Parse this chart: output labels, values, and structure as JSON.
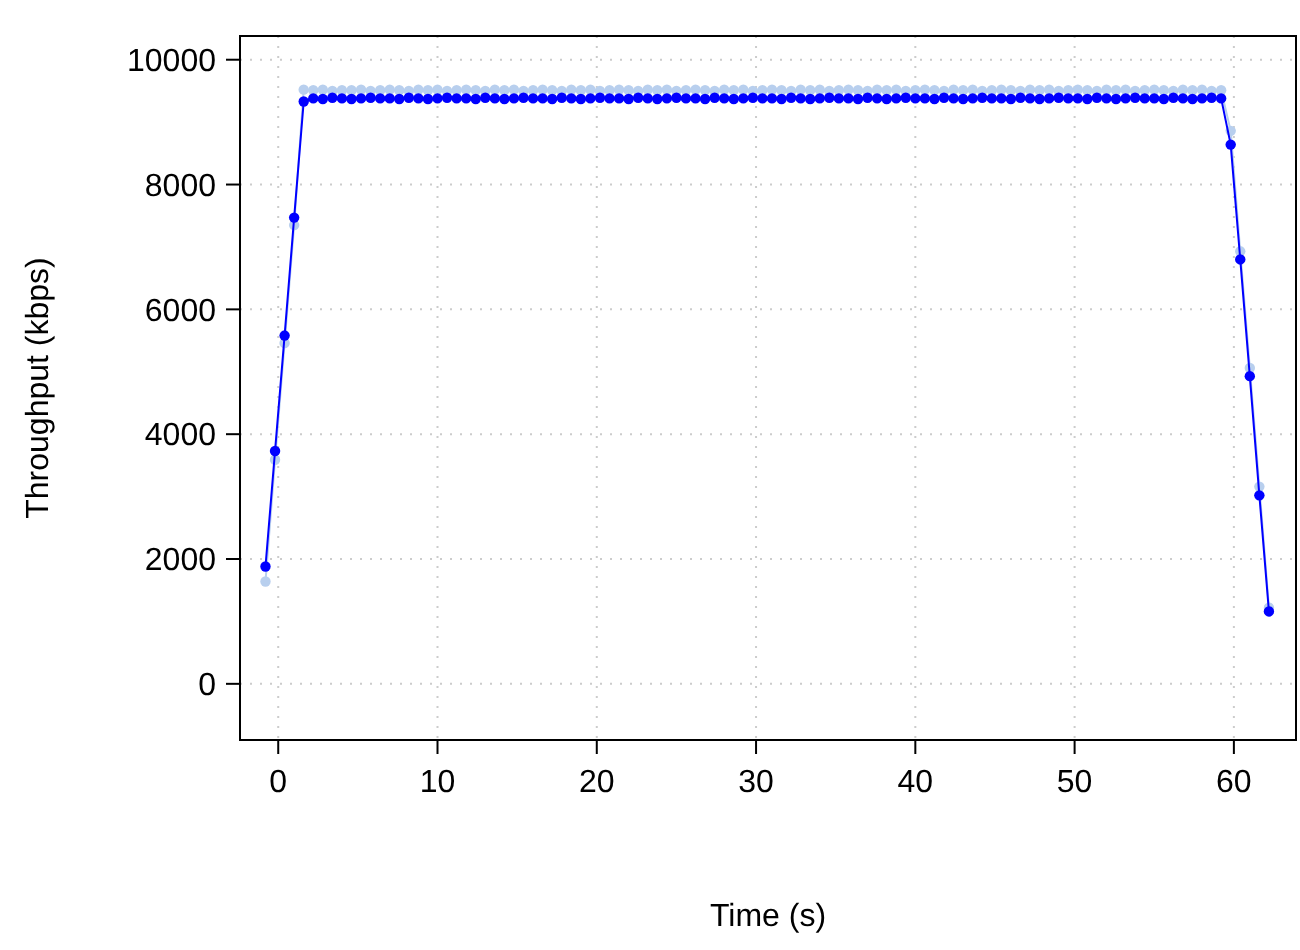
{
  "chart_data": {
    "type": "line",
    "xlabel": "Time (s)",
    "ylabel": "Throughput (kbps)",
    "xlim": [
      -2.4,
      63.9
    ],
    "ylim": [
      -900,
      10380
    ],
    "xticks": [
      0,
      10,
      20,
      30,
      40,
      50,
      60
    ],
    "yticks": [
      0,
      2000,
      4000,
      6000,
      8000,
      10000
    ],
    "grid": true,
    "marker": "circle",
    "line_style": "solid",
    "x": [
      -0.8,
      -0.2,
      0.4,
      1.0,
      1.6,
      2.2,
      2.8,
      3.4,
      4.0,
      4.6,
      5.2,
      5.8,
      6.4,
      7.0,
      7.6,
      8.2,
      8.8,
      9.4,
      10.0,
      10.6,
      11.2,
      11.8,
      12.4,
      13.0,
      13.6,
      14.2,
      14.8,
      15.4,
      16.0,
      16.6,
      17.2,
      17.8,
      18.4,
      19.0,
      19.6,
      20.2,
      20.8,
      21.4,
      22.0,
      22.6,
      23.2,
      23.8,
      24.4,
      25.0,
      25.6,
      26.2,
      26.8,
      27.4,
      28.0,
      28.6,
      29.2,
      29.8,
      30.4,
      31.0,
      31.6,
      32.2,
      32.8,
      33.4,
      34.0,
      34.6,
      35.2,
      35.8,
      36.4,
      37.0,
      37.6,
      38.2,
      38.8,
      39.4,
      40.0,
      40.6,
      41.2,
      41.8,
      42.4,
      43.0,
      43.6,
      44.2,
      44.8,
      45.4,
      46.0,
      46.6,
      47.2,
      47.8,
      48.4,
      49.0,
      49.6,
      50.2,
      50.8,
      51.4,
      52.0,
      52.6,
      53.2,
      53.8,
      54.4,
      55.0,
      55.6,
      56.2,
      56.8,
      57.4,
      58.0,
      58.6,
      59.2,
      59.8,
      60.4,
      61.0,
      61.6,
      62.2
    ],
    "series": [
      {
        "color": "#0000ff",
        "values": [
          1880,
          3730,
          5580,
          7470,
          9330,
          9380,
          9370,
          9390,
          9380,
          9370,
          9380,
          9390,
          9380,
          9380,
          9370,
          9390,
          9380,
          9370,
          9380,
          9390,
          9380,
          9380,
          9370,
          9390,
          9380,
          9370,
          9380,
          9390,
          9380,
          9380,
          9370,
          9390,
          9380,
          9370,
          9380,
          9390,
          9380,
          9380,
          9370,
          9390,
          9380,
          9370,
          9380,
          9390,
          9380,
          9380,
          9370,
          9390,
          9380,
          9370,
          9380,
          9390,
          9380,
          9380,
          9370,
          9390,
          9380,
          9370,
          9380,
          9390,
          9380,
          9380,
          9370,
          9390,
          9380,
          9370,
          9380,
          9390,
          9380,
          9380,
          9370,
          9390,
          9380,
          9370,
          9380,
          9390,
          9380,
          9380,
          9370,
          9390,
          9380,
          9370,
          9380,
          9390,
          9380,
          9380,
          9370,
          9390,
          9380,
          9370,
          9380,
          9390,
          9380,
          9380,
          9370,
          9390,
          9380,
          9370,
          9380,
          9390,
          9380,
          8640,
          6800,
          4930,
          3020,
          1160
        ]
      },
      {
        "color": "#b8cfee",
        "values": [
          1640,
          3590,
          5460,
          7350,
          9520,
          9510,
          9520,
          9500,
          9510,
          9510,
          9520,
          9500,
          9510,
          9520,
          9510,
          9500,
          9520,
          9510,
          9520,
          9500,
          9510,
          9520,
          9510,
          9500,
          9520,
          9510,
          9520,
          9500,
          9510,
          9520,
          9510,
          9500,
          9520,
          9510,
          9520,
          9500,
          9510,
          9520,
          9510,
          9500,
          9520,
          9510,
          9520,
          9500,
          9510,
          9520,
          9510,
          9500,
          9520,
          9510,
          9520,
          9500,
          9510,
          9520,
          9510,
          9500,
          9520,
          9510,
          9520,
          9500,
          9510,
          9520,
          9510,
          9500,
          9520,
          9510,
          9520,
          9500,
          9510,
          9520,
          9510,
          9500,
          9520,
          9510,
          9520,
          9500,
          9510,
          9520,
          9510,
          9500,
          9520,
          9510,
          9520,
          9500,
          9510,
          9520,
          9510,
          9500,
          9520,
          9510,
          9520,
          9500,
          9510,
          9520,
          9510,
          9500,
          9520,
          9510,
          9520,
          9500,
          9510,
          8860,
          6930,
          5060,
          3160,
          1220
        ]
      }
    ]
  }
}
